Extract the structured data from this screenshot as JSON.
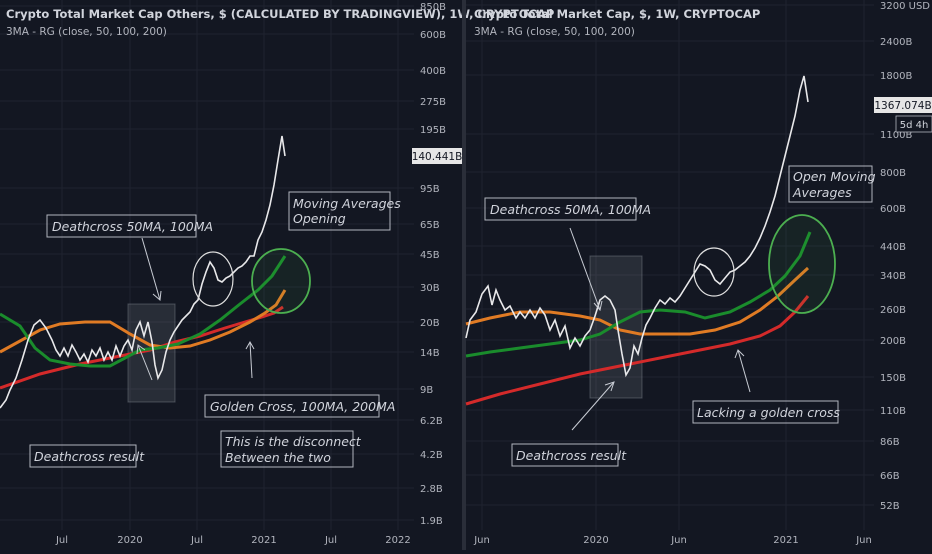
{
  "colors": {
    "background": "#131722",
    "price_line": "#e8e8ea",
    "ma50": "#1a8c2c",
    "ma100": "#e07b24",
    "ma200": "#d42a2a",
    "text": "#d1d4dc",
    "axis_text": "#b2b5be",
    "callout_border": "#b2b5be",
    "ellipse_green": "#4caf50",
    "ellipse_white": "#e0e0e0",
    "tag_bg": "#e6e6e6",
    "tag_text": "#131722"
  },
  "chart_data": [
    {
      "type": "line",
      "title": "Crypto Total Market Cap Others, $ (CALCULATED BY TRADINGVIEW), 1W, CRYPTOCAP",
      "subtitle": "3MA - RG (close, 50, 100, 200)",
      "y_scale": "log",
      "y_tick_labels": [
        "850B",
        "600B",
        "400B",
        "275B",
        "195B",
        "95B",
        "65B",
        "45B",
        "30B",
        "20B",
        "14B",
        "9B",
        "6.2B",
        "4.2B",
        "2.8B",
        "1.9B"
      ],
      "x_tick_labels": [
        "Jul",
        "2020",
        "Jul",
        "2021",
        "Jul",
        "2022"
      ],
      "last_value_label": "140.441B",
      "annotations": [
        "Deathcross 50MA, 100MA",
        "Moving Averages Opening",
        "Golden Cross, 100MA, 200MA",
        "This is the disconnect Between the two",
        "Deathcross result"
      ]
    },
    {
      "type": "line",
      "title": "Crypto Total Market Cap, $, 1W, CRYPTOCAP",
      "subtitle": "3MA - RG (close, 50, 100, 200)",
      "y_scale": "log",
      "y_tick_labels": [
        "3200 USD",
        "2400B",
        "1800B",
        "1100B",
        "800B",
        "600B",
        "440B",
        "340B",
        "260B",
        "200B",
        "150B",
        "110B",
        "86B",
        "66B",
        "52B"
      ],
      "x_tick_labels": [
        "Jun",
        "2020",
        "Jun",
        "2021",
        "Jun"
      ],
      "last_value_label": "1367.074B",
      "countdown_label": "5d 4h",
      "annotations": [
        "Open Moving Averages",
        "Deathcross 50MA, 100MA",
        "Lacking a golden cross",
        "Deathcross result"
      ]
    }
  ]
}
